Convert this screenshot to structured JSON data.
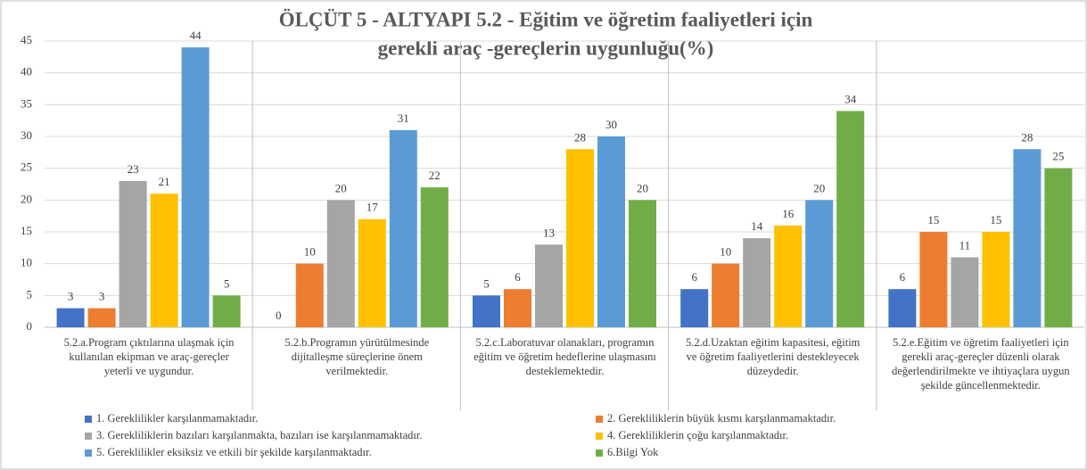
{
  "chart_data": {
    "type": "bar",
    "title": [
      "ÖLÇÜT 5 - ALTYAPI 5.2 - Eğitim ve öğretim faaliyetleri için",
      "gerekli araç -gereçlerin uygunluğu(%)"
    ],
    "categories": [
      "5.2.a.Program çıktılarına ulaşmak için kullanılan ekipman ve araç-gereçler yeterli ve uygundur.",
      "5.2.b.Programın yürütülmesinde dijitalleşme süreçlerine önem verilmektedir.",
      "5.2.c.Laboratuvar olanakları, programın eğitim ve öğretim hedeflerine ulaşmasını desteklemektedir.",
      "5.2.d.Uzaktan eğitim kapasitesi, eğitim ve öğretim faaliyetlerini destekleyecek düzeydedir.",
      "5.2.e.Eğitim ve öğretim faaliyetleri için gerekli araç-gereçler düzenli olarak değerlendirilmekte ve ihtiyaçlara uygun şekilde güncellenmektedir."
    ],
    "series": [
      {
        "name": "1. Gereklilikler karşılanmamaktadır.",
        "color": "#4472c4",
        "values": [
          3,
          0,
          5,
          6,
          6
        ]
      },
      {
        "name": "2. Gerekliliklerin büyük kısmı karşılanmamaktadır.",
        "color": "#ed7d31",
        "values": [
          3,
          10,
          6,
          10,
          15
        ]
      },
      {
        "name": "3. Gerekliliklerin bazıları karşılanmakta, bazıları ise karşılanmamaktadır.",
        "color": "#a5a5a5",
        "values": [
          23,
          20,
          13,
          14,
          11
        ]
      },
      {
        "name": "4. Gerekliliklerin çoğu karşılanmaktadır.",
        "color": "#ffc000",
        "values": [
          21,
          17,
          28,
          16,
          15
        ]
      },
      {
        "name": "5. Gereklilikler eksiksiz ve etkili bir şekilde karşılanmaktadır.",
        "color": "#5b9bd5",
        "values": [
          44,
          31,
          30,
          20,
          28
        ]
      },
      {
        "name": "6.Bilgi Yok",
        "color": "#70ad47",
        "values": [
          5,
          22,
          20,
          34,
          25
        ]
      }
    ],
    "ylim": [
      0,
      45
    ],
    "yticks": [
      0,
      5,
      10,
      15,
      20,
      25,
      30,
      35,
      40,
      45
    ],
    "grid": true
  }
}
